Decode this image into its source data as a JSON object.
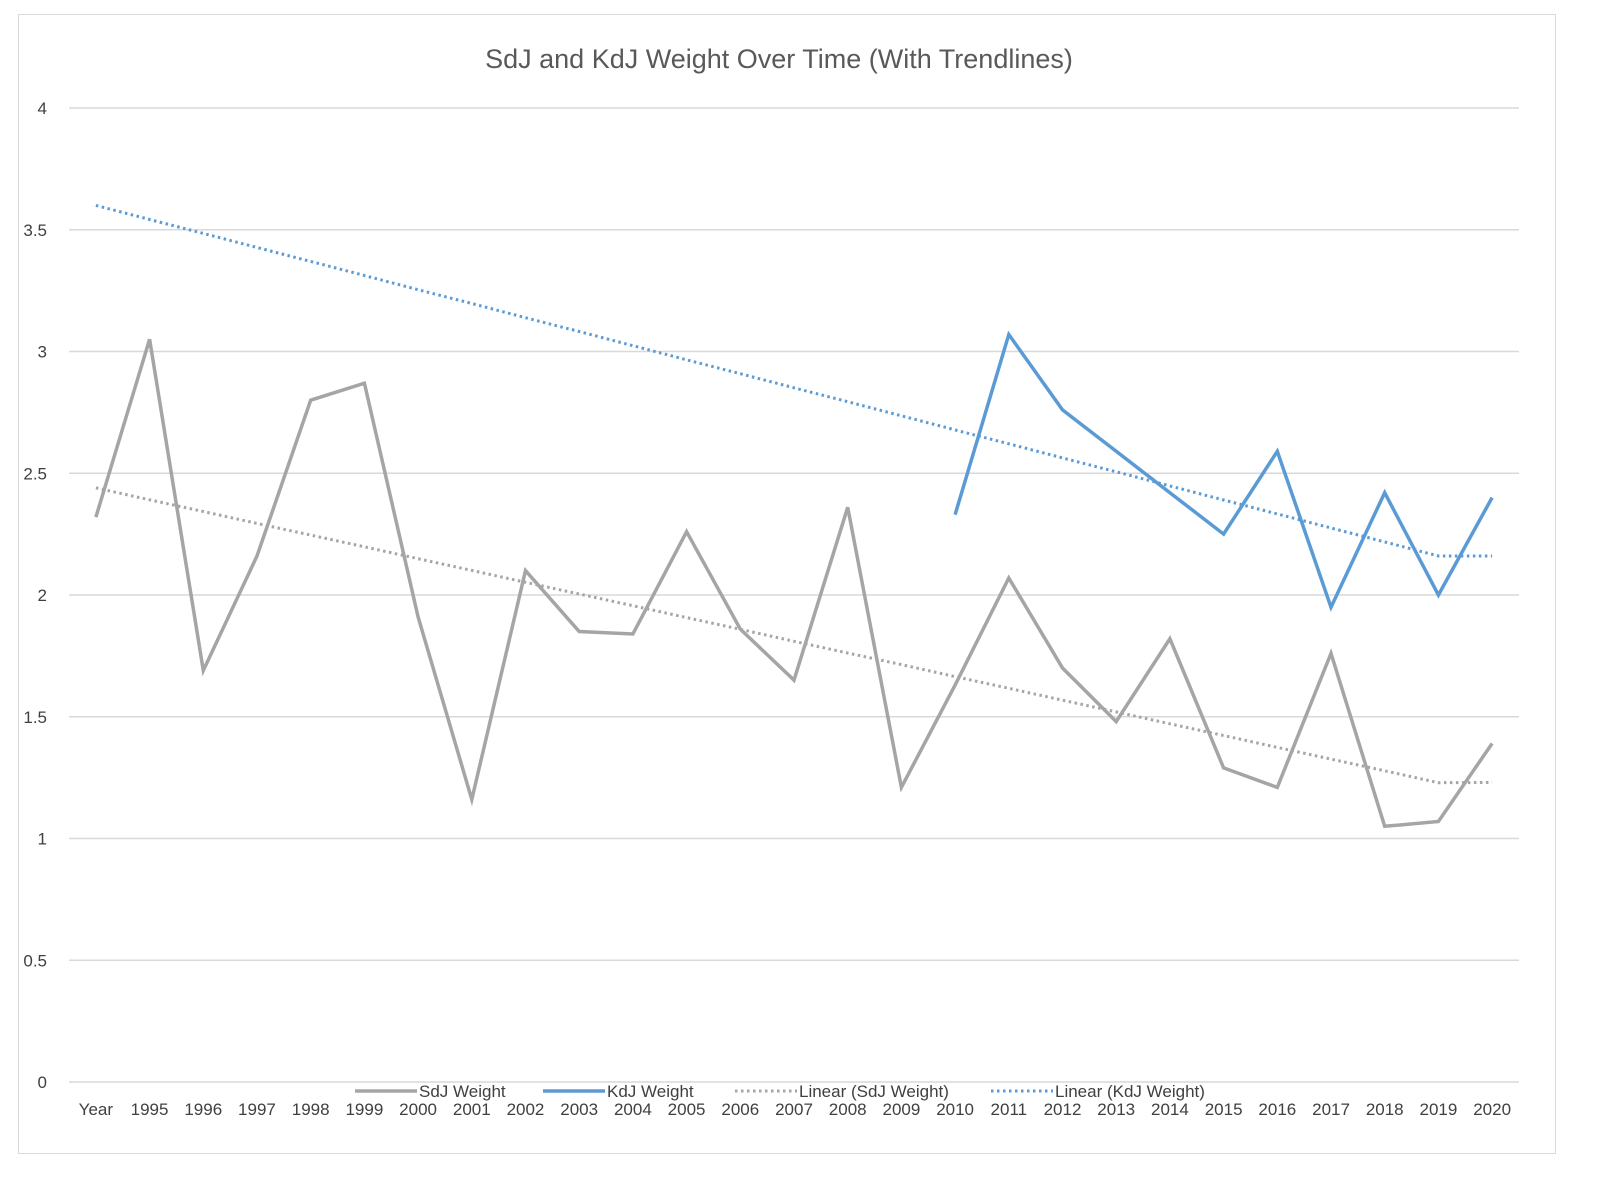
{
  "chart_data": {
    "type": "line",
    "title": "SdJ and KdJ Weight Over Time (With Trendlines)",
    "categories": [
      "Year",
      "1995",
      "1996",
      "1997",
      "1998",
      "1999",
      "2000",
      "2001",
      "2002",
      "2003",
      "2004",
      "2005",
      "2006",
      "2007",
      "2008",
      "2009",
      "2010",
      "2011",
      "2012",
      "2013",
      "2014",
      "2015",
      "2016",
      "2017",
      "2018",
      "2019",
      "2020"
    ],
    "ylim": [
      0,
      4
    ],
    "yticks": [
      "0",
      "0.5",
      "1",
      "1.5",
      "2",
      "2.5",
      "3",
      "3.5",
      "4"
    ],
    "grid": true,
    "legend_position": "bottom",
    "series": [
      {
        "name": "SdJ Weight",
        "style": "solid",
        "color": "#a5a5a5",
        "values": [
          2.32,
          3.05,
          1.69,
          2.16,
          2.8,
          2.87,
          1.91,
          1.16,
          2.1,
          1.85,
          1.84,
          2.26,
          1.86,
          1.65,
          2.36,
          1.21,
          1.63,
          2.07,
          1.7,
          1.48,
          1.82,
          1.29,
          1.21,
          1.76,
          1.05,
          1.07,
          1.39
        ]
      },
      {
        "name": "KdJ Weight",
        "style": "solid",
        "color": "#5b9bd5",
        "values": [
          null,
          null,
          null,
          null,
          null,
          null,
          null,
          null,
          null,
          null,
          null,
          null,
          null,
          null,
          null,
          null,
          2.33,
          3.07,
          2.76,
          2.59,
          2.42,
          2.25,
          2.59,
          1.95,
          2.42,
          2.0,
          2.4
        ]
      },
      {
        "name": "Linear (SdJ Weight)",
        "style": "dotted",
        "color": "#a5a5a5",
        "values": [
          2.44,
          2.391,
          2.343,
          2.294,
          2.246,
          2.198,
          2.149,
          2.101,
          2.052,
          2.004,
          1.956,
          1.907,
          1.859,
          1.81,
          1.762,
          1.714,
          1.665,
          1.617,
          1.568,
          1.52,
          1.471,
          1.423,
          1.374,
          1.326,
          1.278,
          1.229,
          1.23
        ]
      },
      {
        "name": "Linear (KdJ Weight)",
        "style": "dotted",
        "color": "#5b9bd5",
        "values": [
          3.6,
          3.542,
          3.485,
          3.427,
          3.37,
          3.312,
          3.254,
          3.197,
          3.139,
          3.082,
          3.024,
          2.966,
          2.909,
          2.851,
          2.794,
          2.736,
          2.678,
          2.621,
          2.563,
          2.506,
          2.448,
          2.39,
          2.333,
          2.275,
          2.218,
          2.16,
          2.16
        ]
      }
    ]
  }
}
